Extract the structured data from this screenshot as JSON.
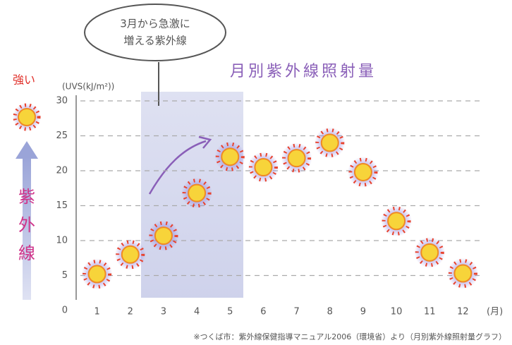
{
  "chart_data": {
    "type": "sun",
    "title": "月別紫外線照射量",
    "y_label": "(UVS(kJ/m²))",
    "x_label": "(月)",
    "callout": [
      "3月から急激に",
      "増える紫外線"
    ],
    "strength_label": "強い",
    "side_label": [
      "紫",
      "外",
      "線"
    ],
    "source": "※つくば市：紫外線保健指導マニュアル2006（環境省）より（月別紫外線照射量グラフ）",
    "categories": [
      "1",
      "2",
      "3",
      "4",
      "5",
      "6",
      "7",
      "8",
      "9",
      "10",
      "11",
      "12"
    ],
    "values": [
      5.2,
      8,
      10.7,
      16.8,
      22,
      20.5,
      21.8,
      24,
      19.8,
      12.8,
      8.3,
      5.3
    ],
    "color": "#f7d43a",
    "ylim": [
      0,
      30
    ],
    "yticks": [
      0,
      5,
      10,
      15,
      20,
      25,
      30
    ],
    "grid": true
  }
}
